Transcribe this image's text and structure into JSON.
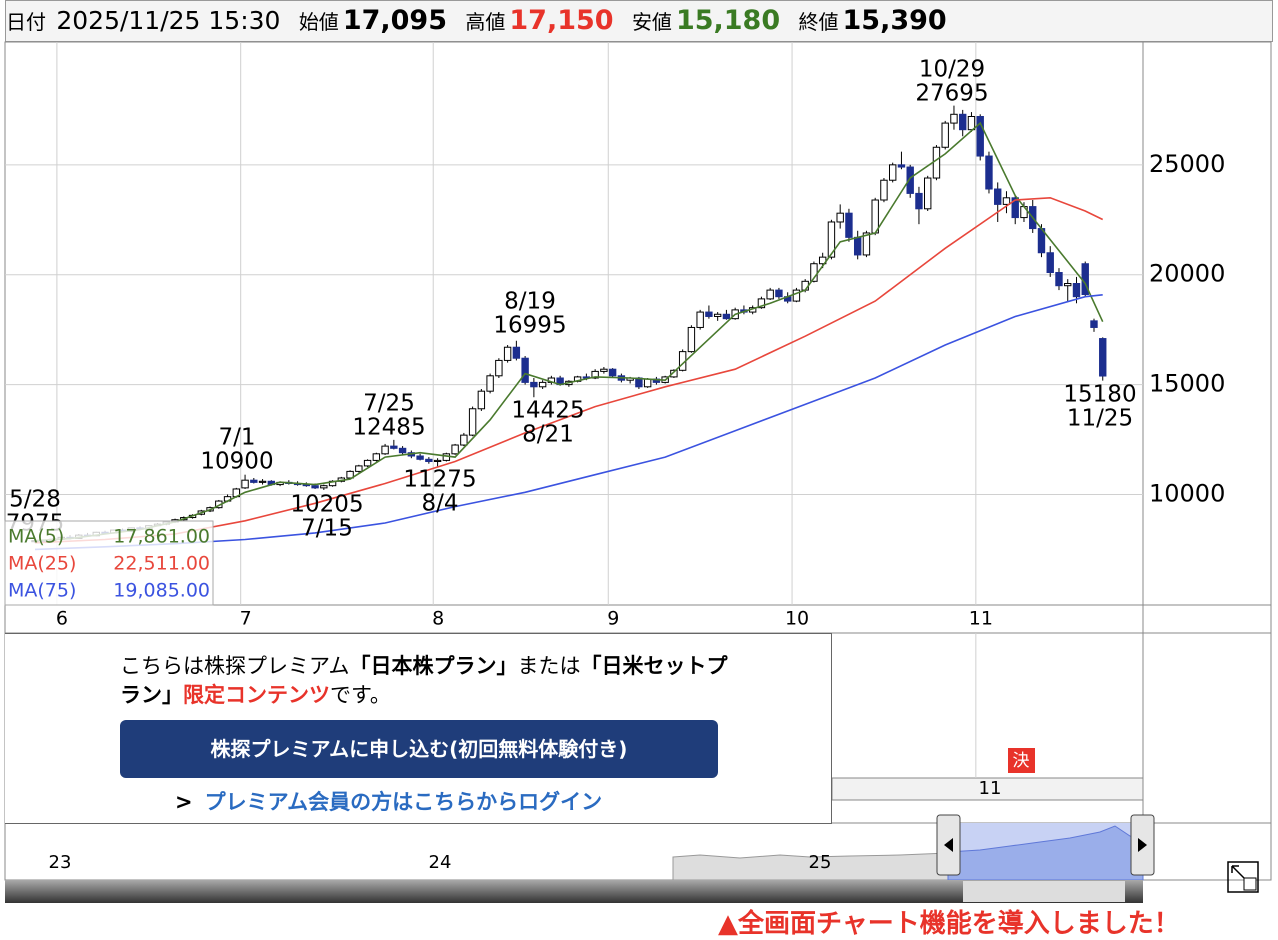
{
  "header": {
    "date_label": "日付",
    "datetime": "2025/11/25 15:30",
    "open_label": "始値",
    "open": "17,095",
    "high_label": "高値",
    "high": "17,150",
    "low_label": "安値",
    "low": "15,180",
    "close_label": "終値",
    "close": "15,390"
  },
  "chart_data": {
    "type": "candlestick",
    "candles": [
      [
        7850,
        7975,
        7800,
        7900
      ],
      [
        7900,
        7950,
        7820,
        7880
      ],
      [
        7880,
        8000,
        7850,
        7960
      ],
      [
        7960,
        8100,
        7900,
        8050
      ],
      [
        8050,
        8150,
        7950,
        8000
      ],
      [
        8000,
        8200,
        7980,
        8150
      ],
      [
        8150,
        8250,
        8080,
        8120
      ],
      [
        8120,
        8300,
        8100,
        8280
      ],
      [
        8280,
        8350,
        8200,
        8250
      ],
      [
        8250,
        8400,
        8220,
        8380
      ],
      [
        8380,
        8450,
        8300,
        8320
      ],
      [
        8320,
        8500,
        8300,
        8480
      ],
      [
        8480,
        8550,
        8400,
        8420
      ],
      [
        8420,
        8600,
        8400,
        8580
      ],
      [
        8580,
        8700,
        8550,
        8650
      ],
      [
        8650,
        8800,
        8600,
        8750
      ],
      [
        8750,
        8900,
        8700,
        8850
      ],
      [
        8850,
        9000,
        8800,
        8950
      ],
      [
        8950,
        9100,
        8900,
        9050
      ],
      [
        9100,
        9300,
        9050,
        9250
      ],
      [
        9250,
        9450,
        9200,
        9400
      ],
      [
        9400,
        9750,
        9350,
        9700
      ],
      [
        9700,
        10000,
        9650,
        9900
      ],
      [
        9900,
        10300,
        9850,
        10250
      ],
      [
        10300,
        10900,
        10250,
        10650
      ],
      [
        10650,
        10750,
        10500,
        10550
      ],
      [
        10550,
        10700,
        10450,
        10600
      ],
      [
        10600,
        10650,
        10400,
        10450
      ],
      [
        10450,
        10600,
        10380,
        10550
      ],
      [
        10550,
        10650,
        10450,
        10500
      ],
      [
        10500,
        10600,
        10400,
        10450
      ],
      [
        10450,
        10550,
        10350,
        10400
      ],
      [
        10400,
        10500,
        10250,
        10300
      ],
      [
        10300,
        10450,
        10205,
        10400
      ],
      [
        10400,
        10650,
        10350,
        10600
      ],
      [
        10600,
        10800,
        10550,
        10750
      ],
      [
        10750,
        11100,
        10700,
        11050
      ],
      [
        11050,
        11350,
        11000,
        11300
      ],
      [
        11300,
        11600,
        11250,
        11550
      ],
      [
        11550,
        11900,
        11500,
        11850
      ],
      [
        11850,
        12300,
        11800,
        12200
      ],
      [
        12200,
        12485,
        12050,
        12100
      ],
      [
        12100,
        12200,
        11800,
        11900
      ],
      [
        11900,
        12000,
        11650,
        11750
      ],
      [
        11750,
        11850,
        11550,
        11600
      ],
      [
        11600,
        11700,
        11400,
        11500
      ],
      [
        11500,
        11650,
        11275,
        11550
      ],
      [
        11550,
        11900,
        11500,
        11850
      ],
      [
        11850,
        12300,
        11800,
        12250
      ],
      [
        12250,
        12800,
        12200,
        12700
      ],
      [
        12700,
        14000,
        12650,
        13900
      ],
      [
        13900,
        14800,
        13800,
        14700
      ],
      [
        14700,
        15500,
        14600,
        15400
      ],
      [
        15400,
        16200,
        15300,
        16100
      ],
      [
        16100,
        16800,
        16000,
        16700
      ],
      [
        16700,
        16995,
        16100,
        16200
      ],
      [
        16200,
        16300,
        15000,
        15100
      ],
      [
        15100,
        15300,
        14425,
        14900
      ],
      [
        14900,
        15200,
        14800,
        15100
      ],
      [
        15100,
        15400,
        15000,
        15300
      ],
      [
        15300,
        15400,
        14950,
        15000
      ],
      [
        15000,
        15200,
        14900,
        15150
      ],
      [
        15150,
        15400,
        15100,
        15350
      ],
      [
        15350,
        15500,
        15200,
        15300
      ],
      [
        15300,
        15700,
        15250,
        15600
      ],
      [
        15600,
        15800,
        15500,
        15700
      ],
      [
        15700,
        15750,
        15300,
        15400
      ],
      [
        15400,
        15500,
        15100,
        15200
      ],
      [
        15200,
        15350,
        15050,
        15300
      ],
      [
        15300,
        15350,
        14800,
        14900
      ],
      [
        14900,
        15300,
        14850,
        15250
      ],
      [
        15250,
        15350,
        15000,
        15100
      ],
      [
        15100,
        15400,
        15050,
        15350
      ],
      [
        15350,
        15700,
        15300,
        15650
      ],
      [
        15650,
        16600,
        15600,
        16500
      ],
      [
        16500,
        17700,
        16450,
        17600
      ],
      [
        17600,
        18400,
        17500,
        18300
      ],
      [
        18300,
        18600,
        18000,
        18100
      ],
      [
        18100,
        18300,
        17900,
        18200
      ],
      [
        18200,
        18400,
        17950,
        18000
      ],
      [
        18000,
        18500,
        17950,
        18400
      ],
      [
        18400,
        18600,
        18200,
        18300
      ],
      [
        18300,
        18600,
        18200,
        18500
      ],
      [
        18500,
        19000,
        18450,
        18900
      ],
      [
        18900,
        19400,
        18850,
        19300
      ],
      [
        19300,
        19400,
        18900,
        19000
      ],
      [
        19000,
        19200,
        18700,
        18800
      ],
      [
        18800,
        19400,
        18750,
        19300
      ],
      [
        19300,
        19800,
        19200,
        19700
      ],
      [
        19700,
        20600,
        19650,
        20500
      ],
      [
        20500,
        21000,
        20300,
        20800
      ],
      [
        20800,
        22500,
        20700,
        22400
      ],
      [
        22400,
        23200,
        22100,
        22800
      ],
      [
        22800,
        23000,
        21500,
        21700
      ],
      [
        21700,
        22000,
        20700,
        20900
      ],
      [
        20900,
        22000,
        20800,
        21900
      ],
      [
        21900,
        23500,
        21800,
        23400
      ],
      [
        23400,
        24400,
        23300,
        24300
      ],
      [
        24300,
        25100,
        24200,
        25000
      ],
      [
        25000,
        25600,
        24800,
        24900
      ],
      [
        24900,
        25000,
        23500,
        23700
      ],
      [
        23700,
        24000,
        22300,
        23000
      ],
      [
        23000,
        24500,
        22900,
        24400
      ],
      [
        24400,
        25900,
        24300,
        25800
      ],
      [
        25800,
        27000,
        25700,
        26900
      ],
      [
        26900,
        27695,
        26600,
        27300
      ],
      [
        27300,
        27500,
        26300,
        26600
      ],
      [
        26600,
        27400,
        26500,
        27200
      ],
      [
        27200,
        27300,
        25200,
        25400
      ],
      [
        25400,
        25600,
        23700,
        23900
      ],
      [
        23900,
        24200,
        22400,
        23200
      ],
      [
        23200,
        23800,
        22800,
        23500
      ],
      [
        23500,
        23600,
        22300,
        22600
      ],
      [
        22600,
        23300,
        22400,
        23100
      ],
      [
        23100,
        23400,
        21900,
        22100
      ],
      [
        22100,
        22300,
        20800,
        21000
      ],
      [
        21000,
        21300,
        19900,
        20100
      ],
      [
        20100,
        20300,
        19300,
        19500
      ],
      [
        19500,
        19800,
        18800,
        19600
      ],
      [
        19600,
        19900,
        18700,
        19000
      ],
      [
        20500,
        20600,
        19000,
        19100
      ],
      [
        17900,
        18000,
        17400,
        17600
      ],
      [
        17095,
        17150,
        15180,
        15390
      ]
    ],
    "up_color": "#ffffff",
    "down_color": "#1c2e8f",
    "series": [
      {
        "name": "MA(5)",
        "color": "#4a7a2e",
        "legend_value": "17,861.00",
        "x": [
          0,
          4,
          8,
          12,
          16,
          20,
          24,
          28,
          32,
          36,
          40,
          44,
          48,
          52,
          56,
          60,
          64,
          68,
          72,
          76,
          80,
          84,
          88,
          92,
          96,
          100,
          104,
          108,
          112,
          116,
          120,
          122
        ],
        "values": [
          7900,
          7990,
          8200,
          8400,
          8750,
          9300,
          10100,
          10560,
          10450,
          10700,
          11700,
          11900,
          11700,
          13400,
          15500,
          15000,
          15350,
          15300,
          15200,
          16700,
          18200,
          18700,
          19300,
          21500,
          21900,
          24400,
          25500,
          26900,
          23600,
          21600,
          19600,
          17861
        ]
      },
      {
        "name": "MA(25)",
        "color": "#e8473c",
        "legend_value": "22,511.00",
        "x": [
          0,
          8,
          16,
          24,
          32,
          40,
          48,
          56,
          64,
          72,
          80,
          88,
          96,
          104,
          112,
          116,
          120,
          122
        ],
        "values": [
          7800,
          7950,
          8200,
          8800,
          9600,
          10500,
          11500,
          12800,
          14000,
          14900,
          15700,
          17200,
          18800,
          21200,
          23400,
          23500,
          22900,
          22511
        ]
      },
      {
        "name": "MA(75)",
        "color": "#3b53e0",
        "legend_value": "19,085.00",
        "x": [
          0,
          8,
          16,
          24,
          32,
          40,
          48,
          56,
          64,
          72,
          80,
          88,
          96,
          104,
          112,
          120,
          122
        ],
        "values": [
          7500,
          7620,
          7760,
          7950,
          8250,
          8700,
          9450,
          10100,
          10900,
          11700,
          12900,
          14100,
          15300,
          16800,
          18100,
          19000,
          19085
        ]
      }
    ],
    "annotations": [
      {
        "date": "5/28",
        "value": 7975
      },
      {
        "date": "7/1",
        "value": 10900
      },
      {
        "date": "7/15",
        "value": 10205
      },
      {
        "date": "7/25",
        "value": 12485
      },
      {
        "date": "8/4",
        "value": 11275
      },
      {
        "date": "8/19",
        "value": 16995
      },
      {
        "date": "8/21",
        "value": 14425
      },
      {
        "date": "10/29",
        "value": 27695
      },
      {
        "date": "11/25",
        "value": 15180
      }
    ],
    "xlim": [
      -3.43,
      126.6
    ],
    "xticks": [
      {
        "value": 2.5,
        "label": "6"
      },
      {
        "value": 23.5,
        "label": "7"
      },
      {
        "value": 45.5,
        "label": "8"
      },
      {
        "value": 65.5,
        "label": "9"
      },
      {
        "value": 86.5,
        "label": "10"
      },
      {
        "value": 107.5,
        "label": "11"
      }
    ],
    "ylim": [
      4970,
      30590
    ],
    "yticks": [
      10000,
      15000,
      20000,
      25000
    ],
    "grid": true
  },
  "lower_panel": {
    "badge": "決",
    "month_label": "11"
  },
  "premium": {
    "text": [
      "こちらは株探プレミアム",
      "「日本株プラン」",
      "または",
      "「日米セットプラン」",
      "限定コンテンツ",
      "です。"
    ],
    "button": "株探プレミアムに申し込む(初回無料体験付き)",
    "login": "プレミアム会員の方はこちらからログイン"
  },
  "navigator": {
    "labels": [
      "23",
      "24",
      "25"
    ]
  },
  "footer": {
    "notice": "▲全画面チャート機能を導入しました！"
  }
}
